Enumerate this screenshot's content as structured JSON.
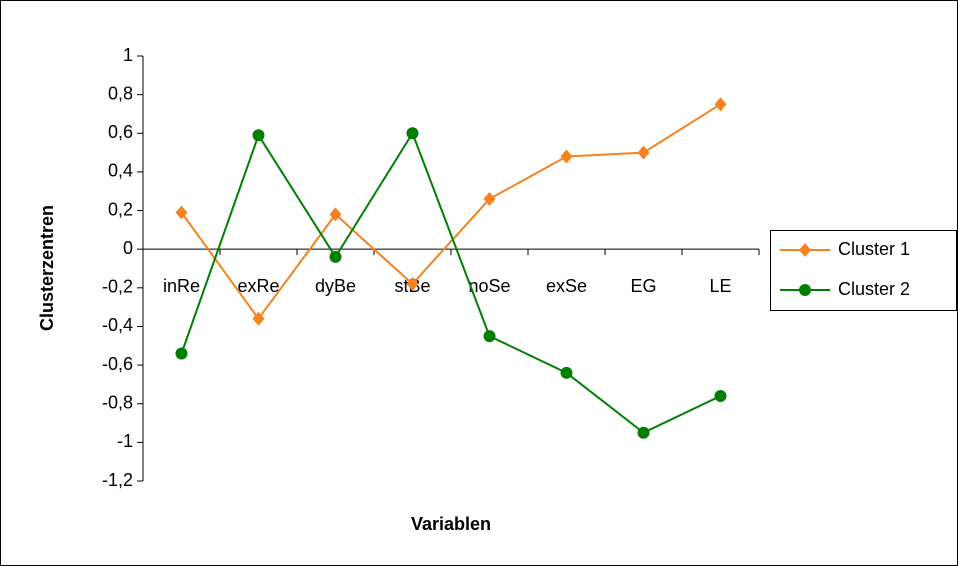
{
  "chart_data": {
    "type": "line",
    "categories": [
      "inRe",
      "exRe",
      "dyBe",
      "stBe",
      "noSe",
      "exSe",
      "EG",
      "LE"
    ],
    "series": [
      {
        "name": "Cluster 1",
        "color": "#f5821f",
        "marker": "diamond",
        "values": [
          0.19,
          -0.36,
          0.18,
          -0.18,
          0.26,
          0.48,
          0.5,
          0.75
        ]
      },
      {
        "name": "Cluster 2",
        "color": "#008000",
        "marker": "circle",
        "values": [
          -0.54,
          0.59,
          -0.04,
          0.6,
          -0.45,
          -0.64,
          -0.95,
          -0.76
        ]
      }
    ],
    "ylim": [
      -1.2,
      1
    ],
    "yticks": [
      {
        "value": -1.2,
        "label": "-1,2"
      },
      -1,
      {
        "value": -0.8,
        "label": "-0,8"
      },
      {
        "value": -0.6,
        "label": "-0,6"
      },
      {
        "value": -0.4,
        "label": "-0,4"
      },
      {
        "value": -0.2,
        "label": "-0,2"
      },
      0,
      {
        "value": 0.2,
        "label": "0,2"
      },
      {
        "value": 0.4,
        "label": "0,4"
      },
      {
        "value": 0.6,
        "label": "0,6"
      },
      {
        "value": 0.8,
        "label": "0,8"
      },
      1
    ],
    "xlabel": "Variablen",
    "ylabel": "Clusterzentren",
    "grid": false,
    "legend": "right"
  }
}
